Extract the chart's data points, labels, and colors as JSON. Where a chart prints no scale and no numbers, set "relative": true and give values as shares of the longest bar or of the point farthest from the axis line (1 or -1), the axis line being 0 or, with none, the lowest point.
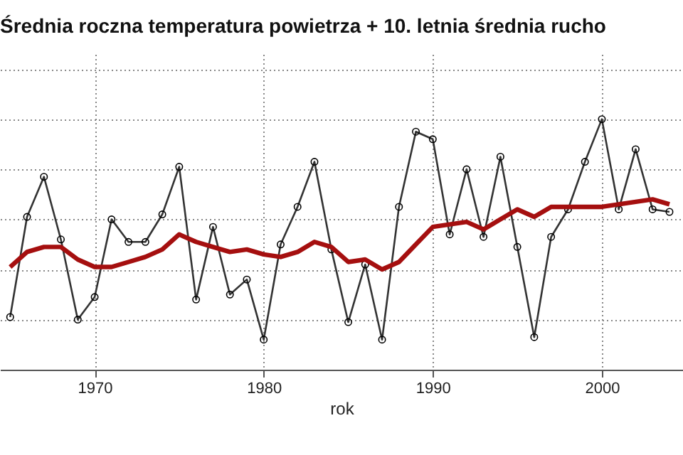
{
  "chart_data": {
    "type": "line",
    "title": "Średnia roczna temperatura powietrza + 10. letnia średnia rucho",
    "xlabel": "rok",
    "relative": true,
    "grid": true,
    "x": [
      1965,
      1966,
      1967,
      1968,
      1969,
      1970,
      1971,
      1972,
      1973,
      1974,
      1975,
      1976,
      1977,
      1978,
      1979,
      1980,
      1981,
      1982,
      1983,
      1984,
      1985,
      1986,
      1987,
      1988,
      1989,
      1990,
      1991,
      1992,
      1993,
      1994,
      1995,
      1996,
      1997,
      1998,
      1999,
      2000,
      2001,
      2002,
      2003,
      2004
    ],
    "xlim": [
      1964.4,
      2004.8
    ],
    "xticks": [
      1970,
      1980,
      1990,
      2000
    ],
    "series": [
      {
        "color": "#333333",
        "marker": "circle",
        "values": [
          0.21,
          0.61,
          0.77,
          0.52,
          0.2,
          0.29,
          0.6,
          0.51,
          0.51,
          0.62,
          0.81,
          0.28,
          0.57,
          0.3,
          0.36,
          0.12,
          0.5,
          0.65,
          0.83,
          0.48,
          0.19,
          0.42,
          0.12,
          0.65,
          0.95,
          0.92,
          0.54,
          0.8,
          0.53,
          0.85,
          0.49,
          0.13,
          0.53,
          0.64,
          0.83,
          1,
          0.64,
          0.88,
          0.64,
          0.63
        ]
      },
      {
        "color": "#a50f0f",
        "marker": "none",
        "values": [
          0.41,
          0.47,
          0.49,
          0.49,
          0.44,
          0.41,
          0.41,
          0.43,
          0.45,
          0.48,
          0.54,
          0.51,
          0.49,
          0.47,
          0.48,
          0.46,
          0.45,
          0.47,
          0.51,
          0.49,
          0.43,
          0.44,
          0.4,
          0.43,
          0.5,
          0.57,
          0.58,
          0.59,
          0.56,
          0.6,
          0.64,
          0.61,
          0.65,
          0.65,
          0.65,
          0.65,
          0.66,
          0.67,
          0.68,
          0.66
        ]
      }
    ]
  }
}
